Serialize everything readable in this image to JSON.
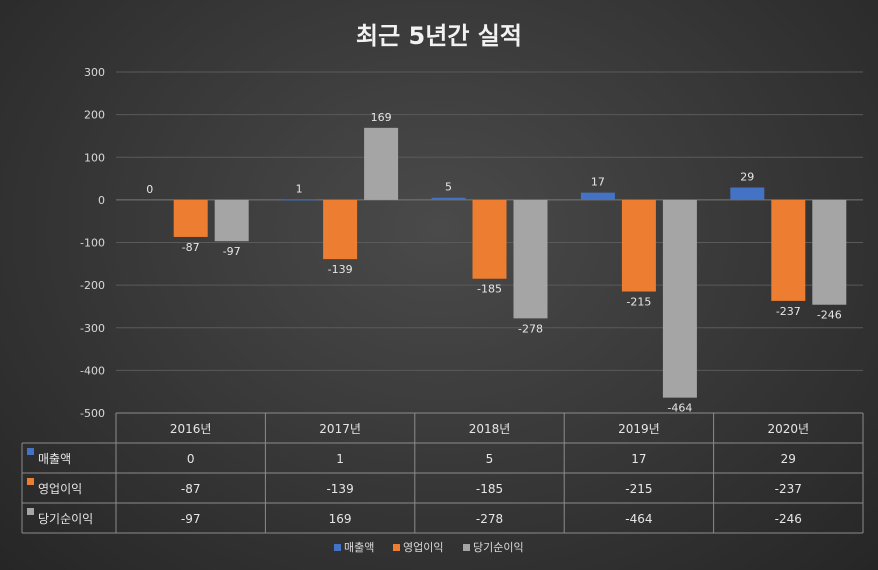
{
  "chart_data": {
    "type": "bar",
    "title": "최근 5년간 실적",
    "categories": [
      "2016년",
      "2017년",
      "2018년",
      "2019년",
      "2020년"
    ],
    "series": [
      {
        "name": "매출액",
        "values": [
          0,
          1,
          5,
          17,
          29
        ],
        "color": "#4472c4"
      },
      {
        "name": "영업이익",
        "values": [
          -87,
          -139,
          -185,
          -215,
          -237
        ],
        "color": "#ed7d31"
      },
      {
        "name": "당기순이익",
        "values": [
          -97,
          169,
          -278,
          -464,
          -246
        ],
        "color": "#a5a5a5"
      }
    ],
    "ylim": [
      -500,
      300
    ],
    "yticks": [
      300,
      200,
      100,
      0,
      -100,
      -200,
      -300,
      -400,
      -500
    ],
    "grid": true,
    "data_table": true,
    "legend": "bottom"
  }
}
